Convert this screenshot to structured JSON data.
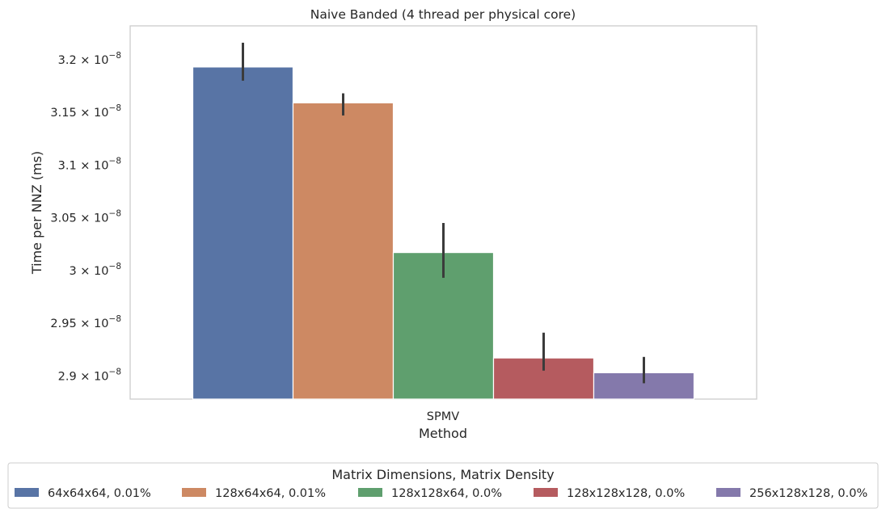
{
  "chart_data": {
    "type": "bar",
    "title": "Naive Banded (4 thread per physical core)",
    "xlabel": "Method",
    "ylabel": "Time per NNZ (ms)",
    "categories": [
      "SPMV"
    ],
    "ylim": [
      2.878e-08,
      3.232e-08
    ],
    "yscale": "linear",
    "grid": false,
    "yticks": [
      {
        "value": 2.9e-08,
        "mantissa": "2.9",
        "exponent": "−8"
      },
      {
        "value": 2.95e-08,
        "mantissa": "2.95",
        "exponent": "−8"
      },
      {
        "value": 3e-08,
        "mantissa": "3",
        "exponent": "−8"
      },
      {
        "value": 3.05e-08,
        "mantissa": "3.05",
        "exponent": "−8"
      },
      {
        "value": 3.1e-08,
        "mantissa": "3.1",
        "exponent": "−8"
      },
      {
        "value": 3.15e-08,
        "mantissa": "3.15",
        "exponent": "−8"
      },
      {
        "value": 3.2e-08,
        "mantissa": "3.2",
        "exponent": "−8"
      }
    ],
    "tick_multiplier": "× 10",
    "series": [
      {
        "name": "64x64x64, 0.01%",
        "color": "#5874a5",
        "values": [
          3.193e-08
        ],
        "error": [
          [
            3.18e-08,
            3.216e-08
          ]
        ]
      },
      {
        "name": "128x64x64, 0.01%",
        "color": "#cd8963",
        "values": [
          3.159e-08
        ],
        "error": [
          [
            3.147e-08,
            3.168e-08
          ]
        ]
      },
      {
        "name": "128x128x64, 0.0%",
        "color": "#5f9f6e",
        "values": [
          3.017e-08
        ],
        "error": [
          [
            2.993e-08,
            3.045e-08
          ]
        ]
      },
      {
        "name": "128x128x128, 0.0%",
        "color": "#b55b5f",
        "values": [
          2.917e-08
        ],
        "error": [
          [
            2.905e-08,
            2.941e-08
          ]
        ]
      },
      {
        "name": "256x128x128, 0.0%",
        "color": "#8479ab",
        "values": [
          2.903e-08
        ],
        "error": [
          [
            2.893e-08,
            2.918e-08
          ]
        ]
      }
    ],
    "legend": {
      "title": "Matrix Dimensions, Matrix Density",
      "placement": "bottom"
    }
  }
}
